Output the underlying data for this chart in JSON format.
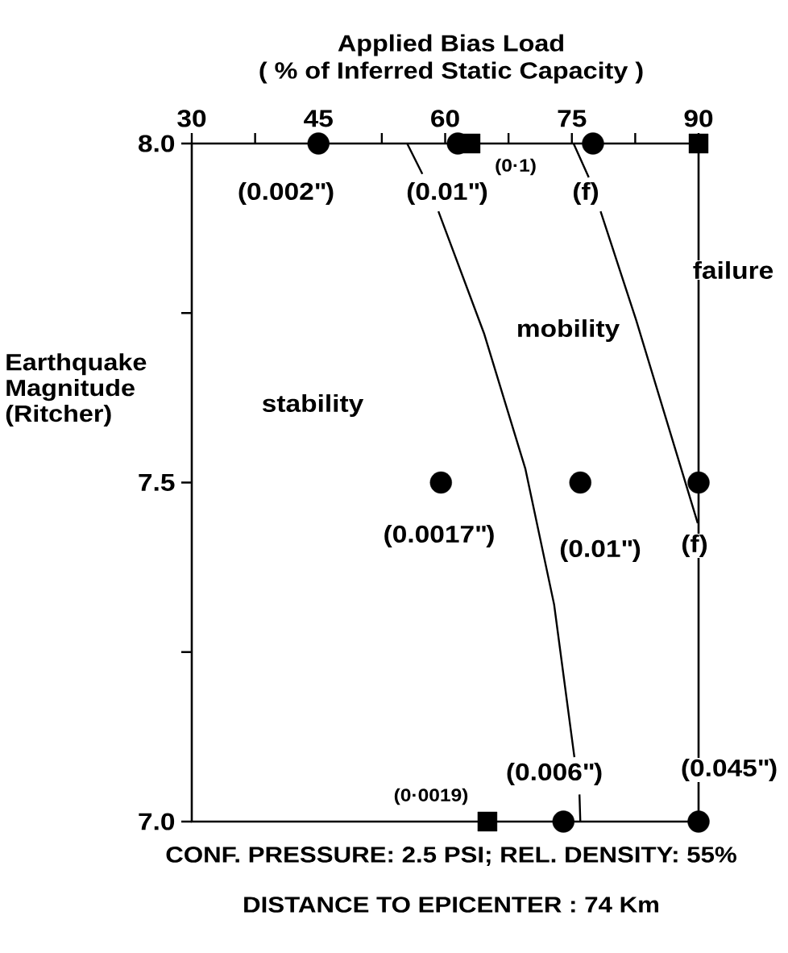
{
  "chart_data": {
    "type": "scatter",
    "xlabel": "Applied Bias Load",
    "subtitle": "( % of Inferred Static Capacity )",
    "ylabel": "Earthquake Magnitude (Ritcher)",
    "xlim": [
      30,
      90
    ],
    "ylim": [
      7.0,
      8.0
    ],
    "xticks": [
      30,
      {
        "value": 37.5,
        "label": null
      },
      45,
      {
        "value": 52.5,
        "label": null
      },
      60,
      {
        "value": 67.5,
        "label": null
      },
      75,
      {
        "value": 82.5,
        "label": null
      },
      90
    ],
    "yticks": [
      {
        "value": 7.0,
        "label": "7.0"
      },
      {
        "value": 7.25,
        "label": null
      },
      {
        "value": 7.5,
        "label": "7.5"
      },
      {
        "value": 7.75,
        "label": null
      },
      {
        "value": 8.0,
        "label": "8.0"
      }
    ],
    "series": [
      {
        "marker": "circle",
        "color": "#000000",
        "x": [
          45,
          61.5,
          77.5,
          59.5,
          76,
          90,
          74,
          90
        ],
        "values": [
          8.0,
          8.0,
          8.0,
          7.5,
          7.5,
          7.5,
          7.0,
          7.0
        ]
      },
      {
        "marker": "square",
        "color": "#000000",
        "x": [
          63,
          90,
          65
        ],
        "values": [
          8.0,
          8.0,
          7.0
        ]
      },
      {
        "type": "line",
        "marker": "none",
        "line_style": "solid",
        "color": "#000000",
        "x": [
          55.5,
          57.3,
          null,
          59.2,
          64.6,
          69.5,
          72.9,
          75.3,
          null,
          75.9,
          76.0
        ],
        "values": [
          8.0,
          7.955,
          null,
          7.9,
          7.72,
          7.52,
          7.32,
          7.095,
          null,
          7.04,
          7.0
        ]
      },
      {
        "type": "line",
        "marker": "none",
        "line_style": "solid",
        "color": "#000000",
        "x": [
          75.2,
          77.0,
          null,
          78.4,
          82.6,
          89.9
        ],
        "values": [
          8.0,
          7.95,
          null,
          7.9,
          7.74,
          7.44
        ]
      }
    ],
    "annotations": [
      "(0.002\")",
      "(0.01\")",
      "(0·1)",
      "(f)",
      "(0.0017\")",
      "(0.01\")",
      "(f)",
      "(0·0019)",
      "(0.006\")",
      "(0.045\")",
      "stability",
      "mobility",
      "failure",
      "CONF. PRESSURE: 2.5 PSI; REL. DENSITY: 55%",
      "DISTANCE TO EPICENTER : 74 Km"
    ]
  }
}
